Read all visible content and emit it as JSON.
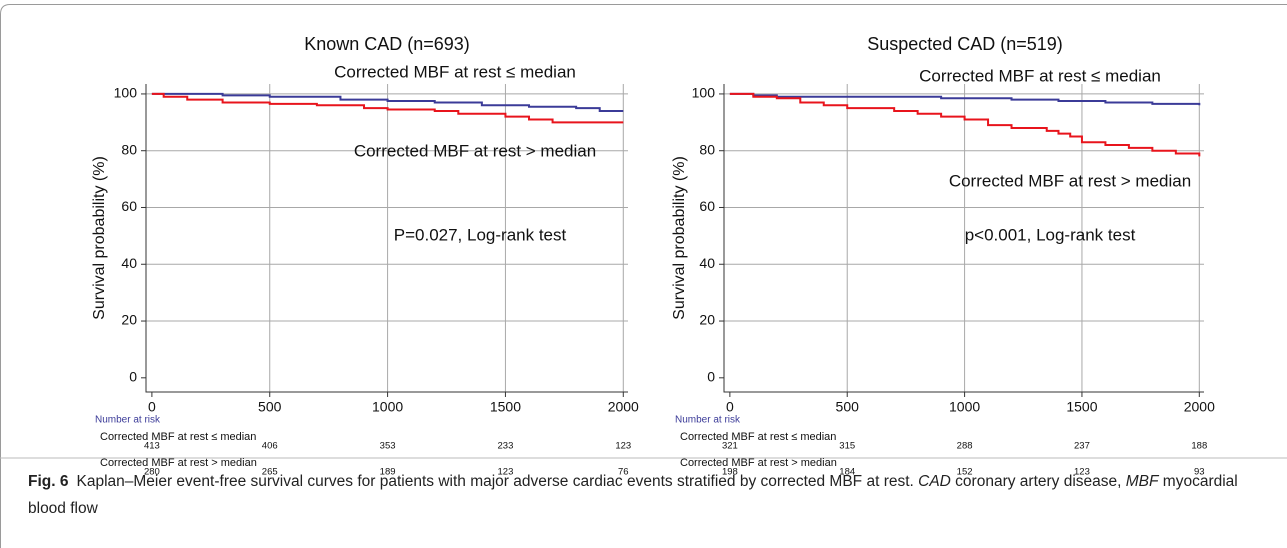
{
  "chart_data": [
    {
      "type": "line",
      "step": true,
      "title": "Known CAD (n=693)",
      "ylabel": "Survival probability (%)",
      "xlim": [
        -25,
        2020
      ],
      "xticks": [
        0,
        500,
        1000,
        1500,
        2000
      ],
      "ylim": [
        -5,
        103.5
      ],
      "yticks": [
        0,
        20,
        40,
        60,
        80,
        100
      ],
      "grid": true,
      "annotation": "P=0.027, Log-rank test",
      "risk_title": "Number at risk",
      "series": [
        {
          "name": "Corrected MBF at rest ≤ median",
          "color": "#3b3b98",
          "x": [
            0,
            300,
            500,
            800,
            1000,
            1200,
            1400,
            1600,
            1800,
            1900,
            2000
          ],
          "values": [
            100,
            99.5,
            99,
            98,
            97.5,
            97,
            96,
            95.5,
            95,
            94,
            94
          ],
          "at_risk": [
            413,
            406,
            353,
            233,
            123
          ]
        },
        {
          "name": "Corrected MBF at rest > median",
          "color": "#e8141c",
          "x": [
            0,
            50,
            150,
            300,
            500,
            700,
            900,
            1000,
            1200,
            1300,
            1500,
            1600,
            1700,
            2000
          ],
          "values": [
            100,
            99,
            98,
            97,
            96.5,
            96,
            95,
            94.5,
            94,
            93,
            92,
            91,
            90,
            90
          ],
          "at_risk": [
            280,
            265,
            189,
            123,
            76
          ]
        }
      ]
    },
    {
      "type": "line",
      "step": true,
      "title": "Suspected CAD (n=519)",
      "ylabel": "Survival probability (%)",
      "xlim": [
        -25,
        2020
      ],
      "xticks": [
        0,
        500,
        1000,
        1500,
        2000
      ],
      "ylim": [
        -5,
        103.5
      ],
      "yticks": [
        0,
        20,
        40,
        60,
        80,
        100
      ],
      "grid": true,
      "annotation": "p<0.001, Log-rank test",
      "risk_title": "Number at risk",
      "series": [
        {
          "name": "Corrected MBF at rest ≤ median",
          "color": "#3b3b98",
          "x": [
            0,
            100,
            200,
            900,
            1200,
            1400,
            1600,
            1800,
            2000
          ],
          "values": [
            100,
            99.5,
            99,
            98.5,
            98,
            97.5,
            97,
            96.5,
            96
          ],
          "at_risk": [
            321,
            315,
            288,
            237,
            188
          ]
        },
        {
          "name": "Corrected MBF at rest > median",
          "color": "#e8141c",
          "x": [
            0,
            100,
            200,
            300,
            400,
            500,
            700,
            800,
            900,
            1000,
            1100,
            1200,
            1350,
            1400,
            1450,
            1500,
            1600,
            1700,
            1800,
            1900,
            2000
          ],
          "values": [
            100,
            99,
            98.5,
            97,
            96,
            95,
            94,
            93,
            92,
            91,
            89,
            88,
            87,
            86,
            85,
            83,
            82,
            81,
            80,
            79,
            78
          ],
          "at_risk": [
            198,
            184,
            152,
            123,
            93
          ]
        }
      ]
    }
  ],
  "caption": {
    "label": "Fig. 6",
    "parts": [
      {
        "text": "Kaplan–Meier event-free survival curves for patients with major adverse cardiac events stratified by corrected MBF at rest. ",
        "style": "normal"
      },
      {
        "text": "CAD",
        "style": "italic"
      },
      {
        "text": " coronary artery disease, ",
        "style": "normal"
      },
      {
        "text": "MBF",
        "style": "italic"
      },
      {
        "text": " myocardial blood flow",
        "style": "normal"
      }
    ]
  }
}
